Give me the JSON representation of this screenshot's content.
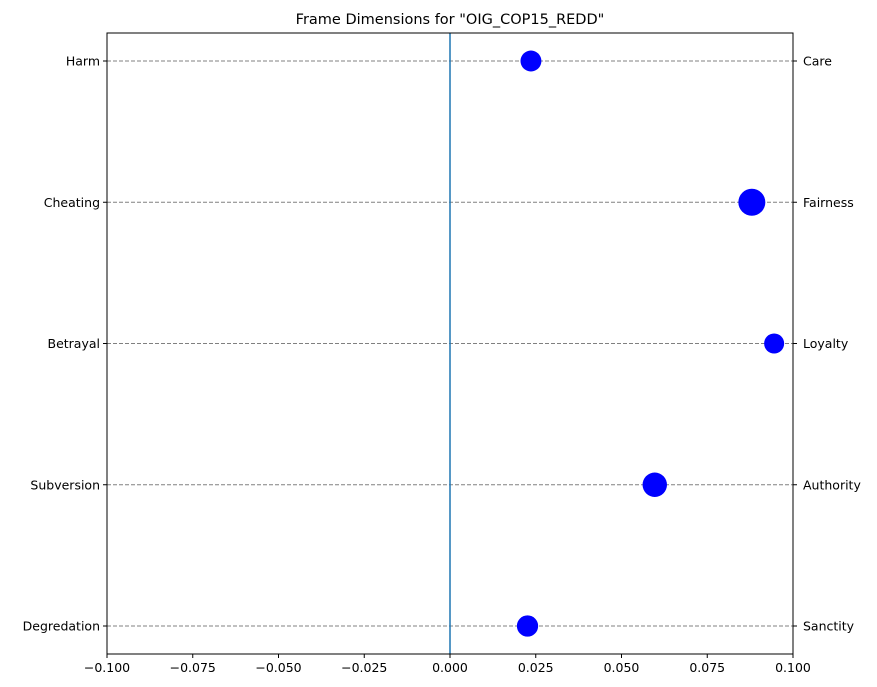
{
  "chart_data": {
    "type": "scatter",
    "title": "Frame Dimensions for \"OIG_COP15_REDD\"",
    "xlabel": "",
    "ylabel": "",
    "xlim": [
      -0.1,
      0.1
    ],
    "x_ticks": [
      -0.1,
      -0.075,
      -0.05,
      -0.025,
      0.0,
      0.025,
      0.05,
      0.075,
      0.1
    ],
    "x_tick_labels": [
      "−0.100",
      "−0.075",
      "−0.050",
      "−0.025",
      "0.000",
      "0.025",
      "0.050",
      "0.075",
      "0.100"
    ],
    "categories_left": [
      "Harm",
      "Cheating",
      "Betrayal",
      "Subversion",
      "Degredation"
    ],
    "categories_right": [
      "Care",
      "Fairness",
      "Loyalty",
      "Authority",
      "Sanctity"
    ],
    "x": [
      0.0236,
      0.088,
      0.0945,
      0.0597,
      0.0226
    ],
    "relative_size": [
      0.6,
      1.0,
      0.55,
      0.82,
      0.62
    ],
    "reference_line_x": 0.0,
    "grid": "horizontal dashed",
    "point_color": "#0000ff",
    "reference_line_color": "#1f77b4",
    "grid_color": "#808080"
  }
}
